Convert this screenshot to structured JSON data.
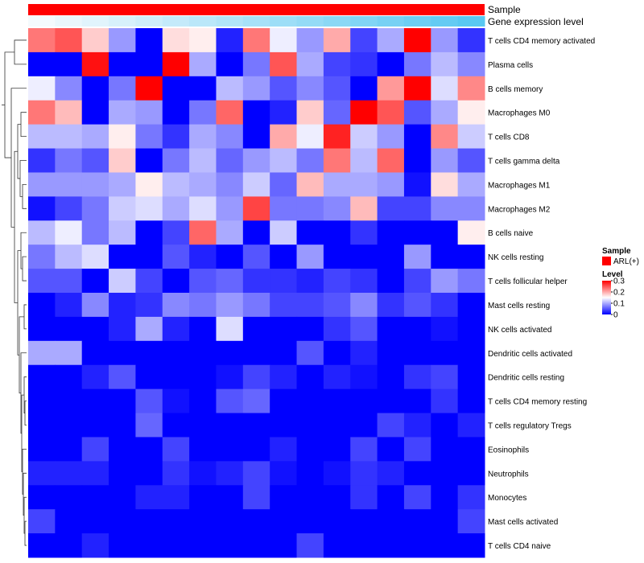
{
  "chart_data": {
    "type": "heatmap",
    "annotations": [
      {
        "name": "Sample",
        "kind": "categorical",
        "color": "#ff0000"
      },
      {
        "name": "Gene expression level",
        "kind": "continuous",
        "colors": [
          "#f4fafd",
          "#5ac8f2"
        ]
      }
    ],
    "rows": [
      "T cells CD4 memory activated",
      "Plasma cells",
      "B cells memory",
      "Macrophages M0",
      "T cells CD8",
      "T cells gamma delta",
      "Macrophages M1",
      "Macrophages M2",
      "B cells naive",
      "NK cells resting",
      "T cells follicular helper",
      "Mast cells resting",
      "NK cells activated",
      "Dendritic cells activated",
      "Dendritic cells resting",
      "T cells CD4 memory resting",
      "T cells regulatory  Tregs",
      "Eosinophils",
      "Neutrophils",
      "Monocytes",
      "Mast cells activated",
      "T cells CD4 naive"
    ],
    "n_columns": 17,
    "values": [
      [
        0.23,
        0.25,
        0.18,
        0.09,
        0.0,
        0.17,
        0.16,
        0.02,
        0.23,
        0.14,
        0.09,
        0.2,
        0.04,
        0.1,
        0.3,
        0.09,
        0.03
      ],
      [
        0.0,
        0.0,
        0.29,
        0.0,
        0.0,
        0.3,
        0.1,
        0.0,
        0.07,
        0.25,
        0.1,
        0.04,
        0.03,
        0.0,
        0.07,
        0.11,
        0.08
      ],
      [
        0.14,
        0.08,
        0.0,
        0.07,
        0.3,
        0.0,
        0.0,
        0.11,
        0.09,
        0.05,
        0.08,
        0.05,
        0.0,
        0.21,
        0.3,
        0.13,
        0.22
      ],
      [
        0.23,
        0.19,
        0.0,
        0.1,
        0.09,
        0.0,
        0.07,
        0.24,
        0.0,
        0.02,
        0.18,
        0.06,
        0.3,
        0.25,
        0.05,
        0.1,
        0.16
      ],
      [
        0.11,
        0.11,
        0.1,
        0.16,
        0.07,
        0.03,
        0.1,
        0.08,
        0.0,
        0.2,
        0.14,
        0.28,
        0.12,
        0.09,
        0.0,
        0.22,
        0.12
      ],
      [
        0.03,
        0.07,
        0.05,
        0.18,
        0.0,
        0.07,
        0.11,
        0.06,
        0.09,
        0.11,
        0.07,
        0.23,
        0.11,
        0.24,
        0.0,
        0.09,
        0.05
      ],
      [
        0.09,
        0.09,
        0.09,
        0.1,
        0.16,
        0.11,
        0.1,
        0.08,
        0.12,
        0.06,
        0.19,
        0.1,
        0.1,
        0.09,
        0.01,
        0.17,
        0.1
      ],
      [
        0.01,
        0.04,
        0.07,
        0.12,
        0.13,
        0.1,
        0.13,
        0.09,
        0.26,
        0.07,
        0.07,
        0.08,
        0.19,
        0.04,
        0.04,
        0.08,
        0.08
      ],
      [
        0.11,
        0.14,
        0.07,
        0.11,
        0.0,
        0.04,
        0.24,
        0.1,
        0.0,
        0.12,
        0.0,
        0.0,
        0.03,
        0.0,
        0.0,
        0.0,
        0.16
      ],
      [
        0.07,
        0.11,
        0.13,
        0.0,
        0.0,
        0.05,
        0.02,
        0.0,
        0.05,
        0.0,
        0.09,
        0.0,
        0.0,
        0.0,
        0.09,
        0.0,
        0.0
      ],
      [
        0.05,
        0.05,
        0.0,
        0.12,
        0.04,
        0.0,
        0.05,
        0.06,
        0.03,
        0.03,
        0.02,
        0.04,
        0.03,
        0.0,
        0.04,
        0.09,
        0.07
      ],
      [
        0.0,
        0.02,
        0.08,
        0.02,
        0.03,
        0.08,
        0.07,
        0.09,
        0.07,
        0.04,
        0.04,
        0.05,
        0.08,
        0.03,
        0.05,
        0.03,
        0.0
      ],
      [
        0.0,
        0.0,
        0.0,
        0.02,
        0.1,
        0.02,
        0.0,
        0.13,
        0.0,
        0.0,
        0.0,
        0.03,
        0.05,
        0.0,
        0.0,
        0.01,
        0.0
      ],
      [
        0.1,
        0.1,
        0.0,
        0.0,
        0.0,
        0.0,
        0.0,
        0.0,
        0.0,
        0.0,
        0.05,
        0.0,
        0.02,
        0.0,
        0.0,
        0.0,
        0.0
      ],
      [
        0.0,
        0.0,
        0.02,
        0.05,
        0.0,
        0.0,
        0.0,
        0.01,
        0.04,
        0.02,
        0.0,
        0.02,
        0.01,
        0.0,
        0.03,
        0.04,
        0.0
      ],
      [
        0.0,
        0.0,
        0.0,
        0.0,
        0.05,
        0.01,
        0.0,
        0.05,
        0.06,
        0.0,
        0.0,
        0.0,
        0.0,
        0.0,
        0.0,
        0.03,
        0.0
      ],
      [
        0.0,
        0.0,
        0.0,
        0.0,
        0.06,
        0.0,
        0.0,
        0.0,
        0.0,
        0.0,
        0.0,
        0.0,
        0.0,
        0.04,
        0.02,
        0.0,
        0.02
      ],
      [
        0.0,
        0.0,
        0.04,
        0.0,
        0.0,
        0.04,
        0.0,
        0.0,
        0.0,
        0.02,
        0.0,
        0.0,
        0.04,
        0.0,
        0.04,
        0.0,
        0.0
      ],
      [
        0.02,
        0.02,
        0.02,
        0.0,
        0.0,
        0.03,
        0.01,
        0.02,
        0.04,
        0.01,
        0.0,
        0.01,
        0.03,
        0.02,
        0.0,
        0.0,
        0.0
      ],
      [
        0.0,
        0.0,
        0.0,
        0.0,
        0.02,
        0.02,
        0.0,
        0.0,
        0.04,
        0.0,
        0.0,
        0.0,
        0.03,
        0.0,
        0.04,
        0.0,
        0.03
      ],
      [
        0.04,
        0.0,
        0.0,
        0.0,
        0.0,
        0.0,
        0.0,
        0.0,
        0.0,
        0.0,
        0.0,
        0.0,
        0.0,
        0.0,
        0.0,
        0.0,
        0.04
      ],
      [
        0.0,
        0.0,
        0.02,
        0.0,
        0.0,
        0.0,
        0.0,
        0.0,
        0.0,
        0.0,
        0.04,
        0.0,
        0.0,
        0.0,
        0.0,
        0.0,
        0.0
      ]
    ],
    "color_scale": {
      "low": "#0000ff",
      "mid": "#ffffff",
      "high": "#ff0000",
      "min": 0,
      "mid_value": 0.15,
      "max": 0.3
    },
    "legend": {
      "sample": {
        "title": "Sample",
        "entry": "ARL(+)"
      },
      "level": {
        "title": "Level",
        "ticks": [
          "0.3",
          "0.2",
          "0.1",
          "0"
        ],
        "tick_values": [
          0.3,
          0.2,
          0.1,
          0
        ]
      }
    },
    "row_dendrogram": true,
    "legend_position": "right"
  }
}
